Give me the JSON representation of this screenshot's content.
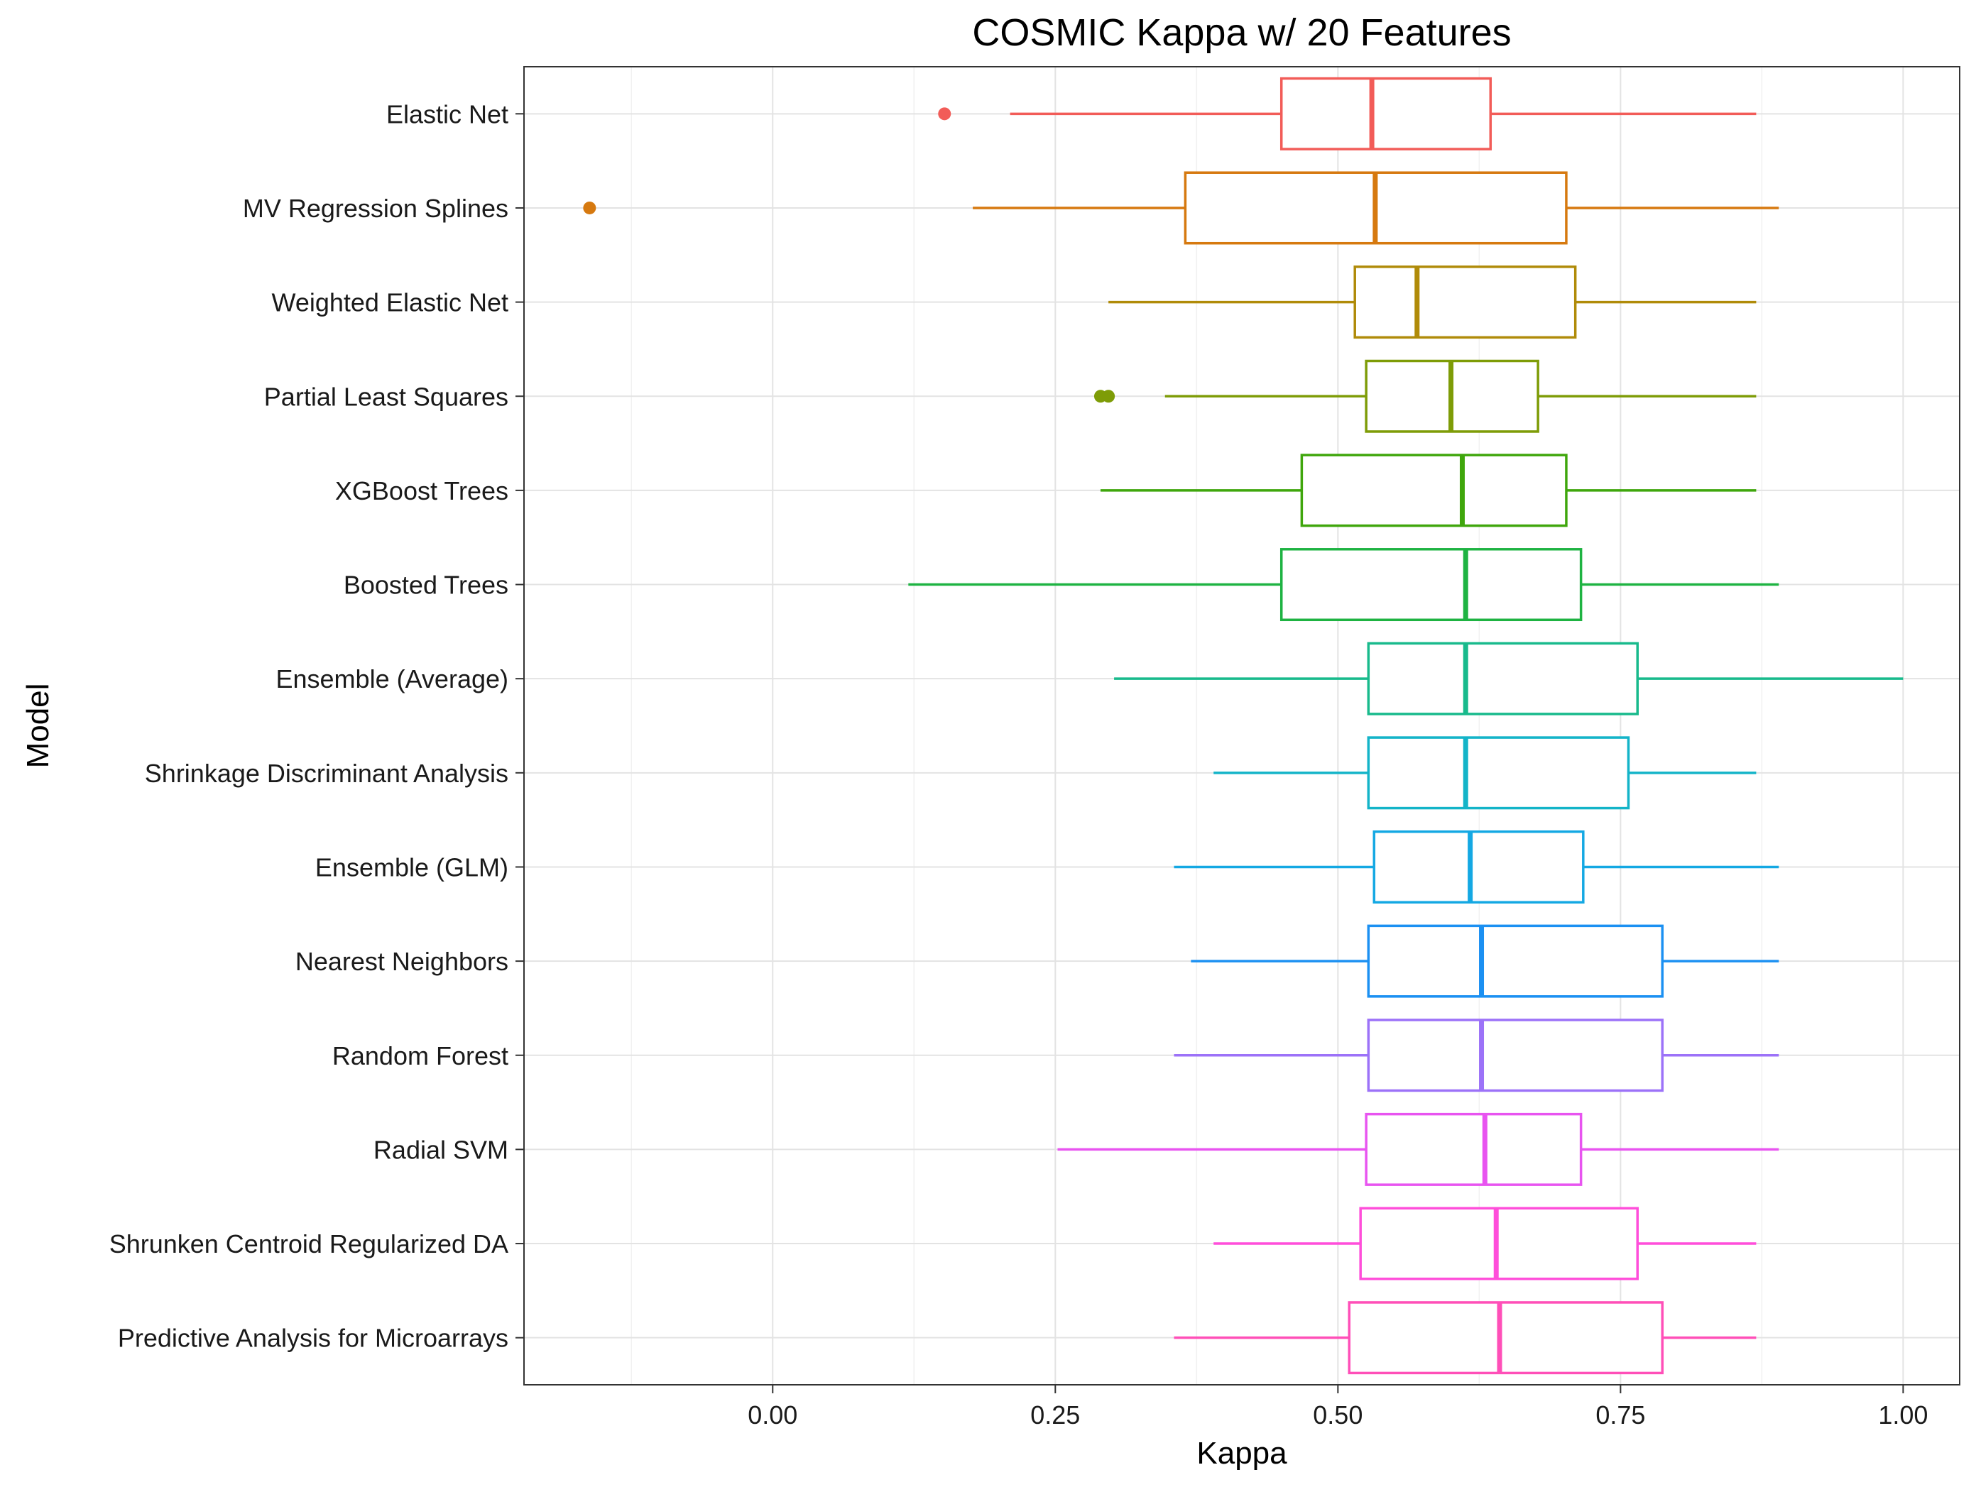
{
  "chart_data": {
    "type": "boxplot",
    "orientation": "horizontal",
    "title": "COSMIC Kappa w/ 20 Features",
    "xlabel": "Kappa",
    "ylabel": "Model",
    "xlim": [
      -0.22,
      1.05
    ],
    "x_ticks": [
      0.0,
      0.25,
      0.5,
      0.75,
      1.0
    ],
    "x_tick_labels": [
      "0.00",
      "0.25",
      "0.50",
      "0.75",
      "1.00"
    ],
    "grid": true,
    "legend": "none",
    "series": [
      {
        "name": "Predictive Analysis for Microarrays",
        "color": "#FF4FB8",
        "whisker_low": 0.355,
        "q1": 0.51,
        "median": 0.643,
        "q3": 0.787,
        "whisker_high": 0.87,
        "outliers": []
      },
      {
        "name": "Shrunken Centroid Regularized DA",
        "color": "#FF4EDA",
        "whisker_low": 0.39,
        "q1": 0.52,
        "median": 0.64,
        "q3": 0.765,
        "whisker_high": 0.87,
        "outliers": []
      },
      {
        "name": "Radial SVM",
        "color": "#E854F0",
        "whisker_low": 0.252,
        "q1": 0.525,
        "median": 0.63,
        "q3": 0.715,
        "whisker_high": 0.89,
        "outliers": []
      },
      {
        "name": "Random Forest",
        "color": "#9C72F8",
        "whisker_low": 0.355,
        "q1": 0.527,
        "median": 0.627,
        "q3": 0.787,
        "whisker_high": 0.89,
        "outliers": []
      },
      {
        "name": "Nearest Neighbors",
        "color": "#1B90F2",
        "whisker_low": 0.37,
        "q1": 0.527,
        "median": 0.627,
        "q3": 0.787,
        "whisker_high": 0.89,
        "outliers": []
      },
      {
        "name": "Ensemble (GLM)",
        "color": "#14A8E3",
        "whisker_low": 0.355,
        "q1": 0.532,
        "median": 0.617,
        "q3": 0.717,
        "whisker_high": 0.89,
        "outliers": []
      },
      {
        "name": "Shrinkage Discriminant Analysis",
        "color": "#13B4C8",
        "whisker_low": 0.39,
        "q1": 0.527,
        "median": 0.613,
        "q3": 0.757,
        "whisker_high": 0.87,
        "outliers": []
      },
      {
        "name": "Ensemble (Average)",
        "color": "#18BA8C",
        "whisker_low": 0.302,
        "q1": 0.527,
        "median": 0.613,
        "q3": 0.765,
        "whisker_high": 1.0,
        "outliers": []
      },
      {
        "name": "Boosted Trees",
        "color": "#1EB342",
        "whisker_low": 0.12,
        "q1": 0.45,
        "median": 0.613,
        "q3": 0.715,
        "whisker_high": 0.89,
        "outliers": []
      },
      {
        "name": "XGBoost Trees",
        "color": "#3FA60C",
        "whisker_low": 0.29,
        "q1": 0.468,
        "median": 0.61,
        "q3": 0.702,
        "whisker_high": 0.87,
        "outliers": []
      },
      {
        "name": "Partial Least Squares",
        "color": "#7E9C07",
        "whisker_low": 0.347,
        "q1": 0.525,
        "median": 0.6,
        "q3": 0.677,
        "whisker_high": 0.87,
        "outliers": [
          0.29,
          0.297
        ]
      },
      {
        "name": "Weighted Elastic Net",
        "color": "#B08B09",
        "whisker_low": 0.297,
        "q1": 0.515,
        "median": 0.57,
        "q3": 0.71,
        "whisker_high": 0.87,
        "outliers": []
      },
      {
        "name": "MV Regression Splines",
        "color": "#D6790F",
        "whisker_low": 0.177,
        "q1": 0.365,
        "median": 0.533,
        "q3": 0.702,
        "whisker_high": 0.89,
        "outliers": [
          -0.162
        ]
      },
      {
        "name": "Elastic Net",
        "color": "#F25C58",
        "whisker_low": 0.21,
        "q1": 0.45,
        "median": 0.53,
        "q3": 0.635,
        "whisker_high": 0.87,
        "outliers": [
          0.152
        ]
      }
    ]
  }
}
